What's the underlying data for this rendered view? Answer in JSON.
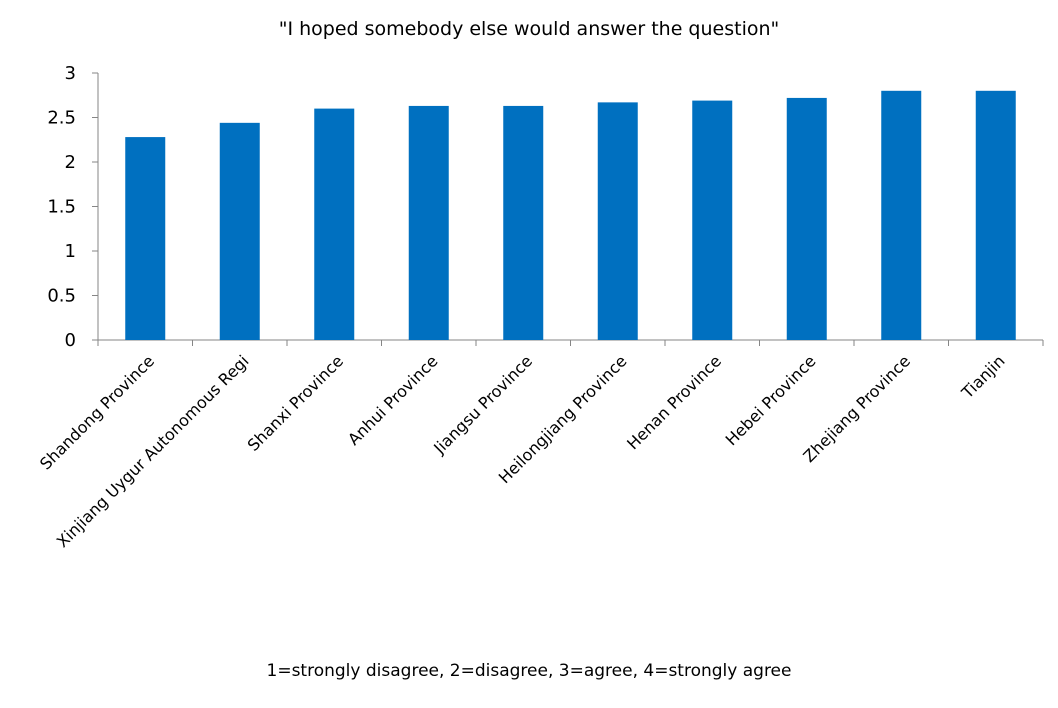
{
  "chart_data": {
    "type": "bar",
    "title": "\"I hoped somebody else would answer the question\"",
    "xlabel": "",
    "ylabel": "",
    "ylim": [
      0,
      3
    ],
    "yticks": [
      "0",
      "0.5",
      "1",
      "1.5",
      "2",
      "2.5",
      "3"
    ],
    "grid": false,
    "legend": "none",
    "bar_color": "#0070C0",
    "categories": [
      "Shandong Province",
      "Xinjiang Uygur Autonomous Regi",
      "Shanxi Province",
      "Anhui Province",
      "Jiangsu Province",
      "Heilongjiang Province",
      "Henan Province",
      "Hebei Province",
      "Zhejiang Province",
      "Tianjin"
    ],
    "values": [
      2.28,
      2.44,
      2.6,
      2.63,
      2.63,
      2.67,
      2.69,
      2.72,
      2.8,
      2.8
    ]
  },
  "footnote": "1=strongly disagree, 2=disagree, 3=agree, 4=strongly agree"
}
